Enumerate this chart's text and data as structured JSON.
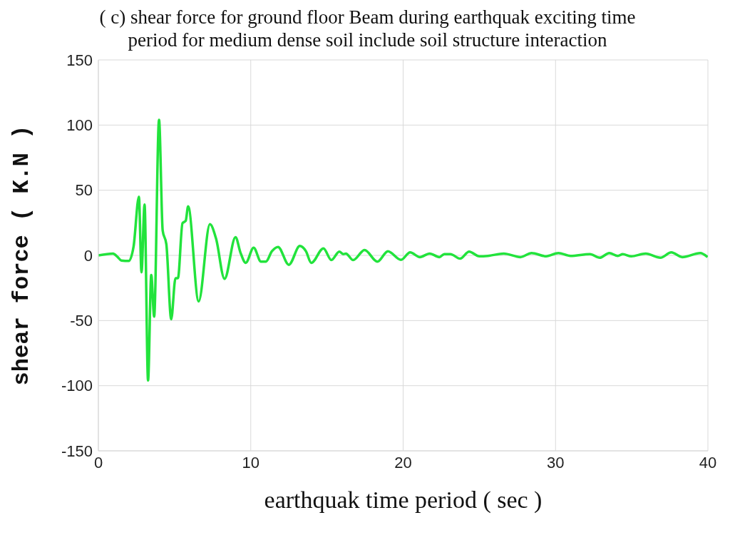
{
  "chart_data": {
    "type": "line",
    "title": "( c) shear force for ground floor  Beam during earthquak  exciting time period for medium dense soil include soil structure interaction",
    "xlabel": "earthquak time period ( sec )",
    "ylabel": "shear force  ( K.N )",
    "x": [
      0,
      0.96,
      1.27,
      1.51,
      1.99,
      2.31,
      2.66,
      2.83,
      3.03,
      3.26,
      3.47,
      3.66,
      3.98,
      4.22,
      4.46,
      4.78,
      5.06,
      5.22,
      5.52,
      5.73,
      5.89,
      6.58,
      7.32,
      7.72,
      8.28,
      9.0,
      9.32,
      9.67,
      10.19,
      10.67,
      10.99,
      11.39,
      11.79,
      12.5,
      13.22,
      13.62,
      13.97,
      14.77,
      15.29,
      15.81,
      16.08,
      16.24,
      16.72,
      17.47,
      18.31,
      19.0,
      19.86,
      20.46,
      21.1,
      21.74,
      22.38,
      22.7,
      23.1,
      23.74,
      24.33,
      25.0,
      25.56,
      26.6,
      27.7,
      28.43,
      29.39,
      30.19,
      30.98,
      32.26,
      32.9,
      33.53,
      34.09,
      34.41,
      34.97,
      35.92,
      36.88,
      37.6,
      38.31,
      39.5,
      39.98
    ],
    "series": [
      {
        "color": "#22e33c",
        "values": [
          0,
          1.4,
          -1.3,
          -4,
          -4.3,
          6.8,
          45,
          -13,
          39,
          -96,
          -15,
          -47,
          104,
          19,
          8.6,
          -49,
          -17.5,
          -17.5,
          24.7,
          26.5,
          37.6,
          -35.3,
          23.9,
          13,
          -18,
          14,
          2.3,
          -5.7,
          5.9,
          -4.8,
          -4.8,
          3.2,
          6.5,
          -7.2,
          7.2,
          3.2,
          -5.7,
          5.4,
          -3.6,
          2.9,
          1,
          1.4,
          -3.6,
          4.1,
          -4.8,
          3.2,
          -3.4,
          2.3,
          -1.3,
          1.4,
          -1.3,
          1,
          1,
          -2.5,
          2.9,
          -0.7,
          -0.4,
          1.4,
          -1.3,
          1.8,
          -0.7,
          1.8,
          -0.4,
          1,
          -1.8,
          1.8,
          -0.4,
          0.9,
          -0.7,
          1.4,
          -1.8,
          2.3,
          -1.3,
          1.8,
          -1.3
        ]
      }
    ],
    "xlim": [
      0,
      40
    ],
    "xticks": [
      0,
      10,
      20,
      30,
      40
    ],
    "ylim": [
      -150,
      150
    ],
    "yticks": [
      -150,
      -100,
      -50,
      0,
      50,
      100,
      150
    ],
    "grid": true,
    "legend": false,
    "marker": "none",
    "line_style": "solid"
  }
}
